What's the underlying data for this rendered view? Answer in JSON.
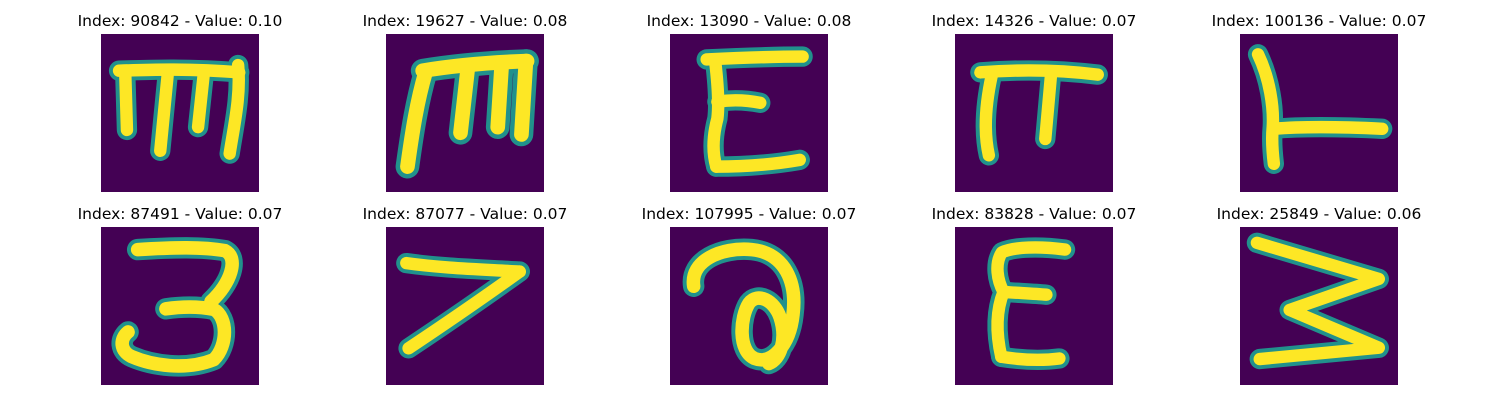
{
  "colors": {
    "background": "#440154",
    "stroke_core": "#fde725",
    "stroke_edge": "#5ec962",
    "stroke_halo": "#21918c"
  },
  "panels": [
    {
      "title": "Index: 90842 - Value: 0.10",
      "glyph": "m-shape"
    },
    {
      "title": "Index: 19627 - Value: 0.08",
      "glyph": "m-shape-bold"
    },
    {
      "title": "Index: 13090 - Value: 0.08",
      "glyph": "e-shape"
    },
    {
      "title": "Index: 14326 - Value: 0.07",
      "glyph": "pi-shape"
    },
    {
      "title": "Index: 100136 - Value: 0.07",
      "glyph": "l-shape"
    },
    {
      "title": "Index: 87491 - Value: 0.07",
      "glyph": "three-shape"
    },
    {
      "title": "Index: 87077 - Value: 0.07",
      "glyph": "seven-shape"
    },
    {
      "title": "Index: 107995 - Value: 0.07",
      "glyph": "loop-shape"
    },
    {
      "title": "Index: 83828 - Value: 0.07",
      "glyph": "epsilon-shape"
    },
    {
      "title": "Index: 25849 - Value: 0.06",
      "glyph": "zigzag-shape"
    }
  ]
}
